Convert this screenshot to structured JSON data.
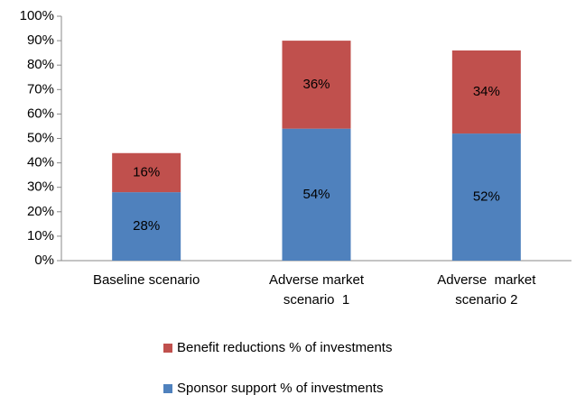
{
  "chart_data": {
    "type": "stacked_bar",
    "categories": [
      "Baseline scenario",
      "Adverse market scenario  1",
      "Adverse  market scenario 2"
    ],
    "series": [
      {
        "name": "Sponsor support % of investments",
        "color": "#4f81bd",
        "values": [
          28,
          54,
          52
        ],
        "value_labels": [
          "28%",
          "54%",
          "52%"
        ]
      },
      {
        "name": "Benefit reductions % of investments",
        "color": "#c0504d",
        "values": [
          16,
          36,
          34
        ],
        "value_labels": [
          "16%",
          "36%",
          "34%"
        ]
      }
    ],
    "ylim": [
      0,
      100
    ],
    "yticks": [
      {
        "value": 0,
        "label": "0%"
      },
      {
        "value": 10,
        "label": "10%"
      },
      {
        "value": 20,
        "label": "20%"
      },
      {
        "value": 30,
        "label": "30%"
      },
      {
        "value": 40,
        "label": "40%"
      },
      {
        "value": 50,
        "label": "50%"
      },
      {
        "value": 60,
        "label": "60%"
      },
      {
        "value": 70,
        "label": "70%"
      },
      {
        "value": 80,
        "label": "80%"
      },
      {
        "value": 90,
        "label": "90%"
      },
      {
        "value": 100,
        "label": "100%"
      }
    ],
    "grid": false,
    "legend": "bottom"
  }
}
